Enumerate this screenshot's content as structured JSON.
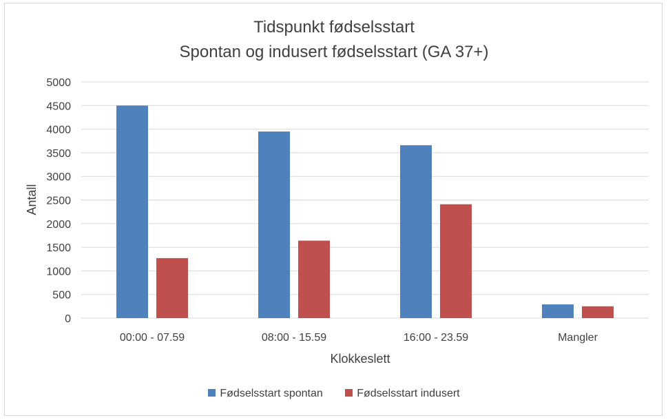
{
  "chart_data": {
    "type": "bar",
    "title": "Tidspunkt fødselsstart",
    "subtitle": "Spontan og indusert fødselsstart (GA 37+)",
    "xlabel": "Klokkeslett",
    "ylabel": "Antall",
    "categories": [
      "00:00 - 07.59",
      "08:00 - 15.59",
      "16:00 - 23.59",
      "Mangler"
    ],
    "series": [
      {
        "name": "Fødselsstart spontan",
        "color": "#4f81bd",
        "values": [
          4500,
          3950,
          3660,
          290
        ]
      },
      {
        "name": "Fødselsstart indusert",
        "color": "#c0504d",
        "values": [
          1270,
          1640,
          2410,
          250
        ]
      }
    ],
    "ylim": [
      0,
      5000
    ],
    "yticks": [
      "0",
      "500",
      "1000",
      "1500",
      "2000",
      "2500",
      "3000",
      "3500",
      "4000",
      "4500",
      "5000"
    ],
    "grid": true,
    "legend_position": "bottom"
  }
}
